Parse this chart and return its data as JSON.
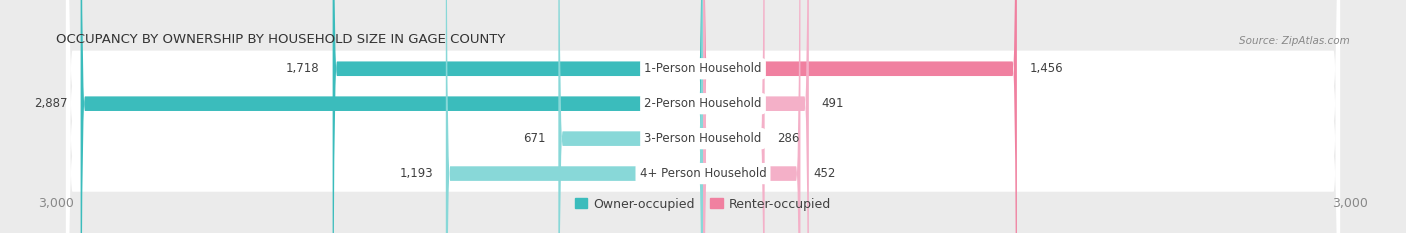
{
  "title": "OCCUPANCY BY OWNERSHIP BY HOUSEHOLD SIZE IN GAGE COUNTY",
  "source": "Source: ZipAtlas.com",
  "categories": [
    "1-Person Household",
    "2-Person Household",
    "3-Person Household",
    "4+ Person Household"
  ],
  "owner_values": [
    1718,
    2887,
    671,
    1193
  ],
  "renter_values": [
    1456,
    491,
    286,
    452
  ],
  "max_axis": 3000,
  "owner_colors": [
    "#3BBCBC",
    "#3BBCBC",
    "#88D8D8",
    "#88D8D8"
  ],
  "renter_colors": [
    "#F080A0",
    "#F4B0C8",
    "#F4B0C8",
    "#F4B0C8"
  ],
  "background_color": "#ebebeb",
  "bar_background": "#ffffff",
  "row_sep_color": "#d8d8d8",
  "label_color": "#404040",
  "title_color": "#333333",
  "axis_label_color": "#888888",
  "legend_owner": "Owner-occupied",
  "legend_renter": "Renter-occupied"
}
